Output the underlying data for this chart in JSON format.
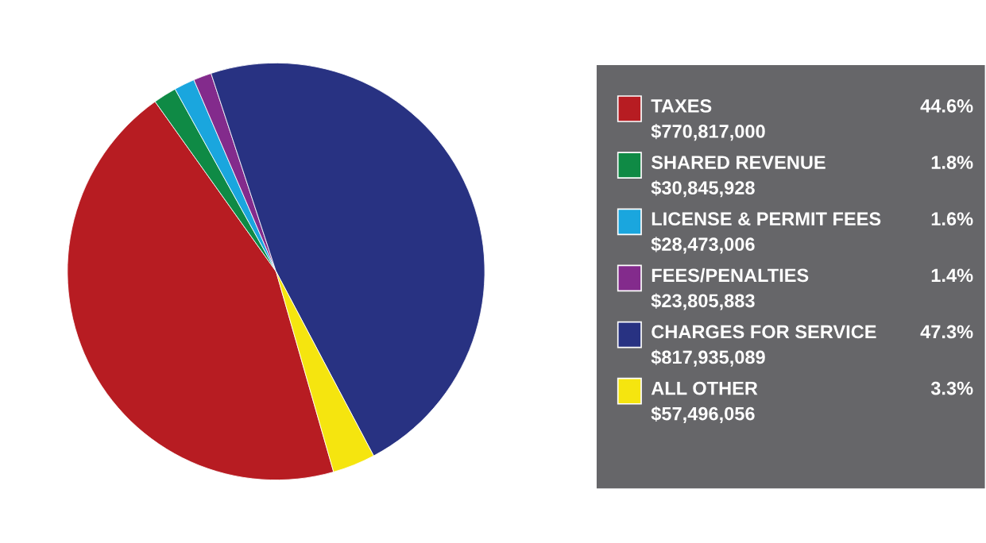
{
  "chart_data": {
    "type": "pie",
    "categories": [
      "TAXES",
      "SHARED REVENUE",
      "LICENSE & PERMIT FEES",
      "FEES/PENALTIES",
      "CHARGES FOR SERVICE",
      "ALL OTHER"
    ],
    "values": [
      44.6,
      1.8,
      1.6,
      1.4,
      47.3,
      3.3
    ],
    "value_labels": [
      "44.6%",
      "1.8%",
      "1.6%",
      "1.4%",
      "47.3%",
      "3.3%"
    ],
    "annotations": [
      "$770,817,000",
      "$30,845,928",
      "$28,473,006",
      "$23,805,883",
      "$817,935,089",
      "$57,496,056"
    ],
    "colors": [
      "#b71c22",
      "#0f8a45",
      "#1aa6de",
      "#832b8c",
      "#283282",
      "#f5e50f"
    ],
    "legend": "right"
  }
}
